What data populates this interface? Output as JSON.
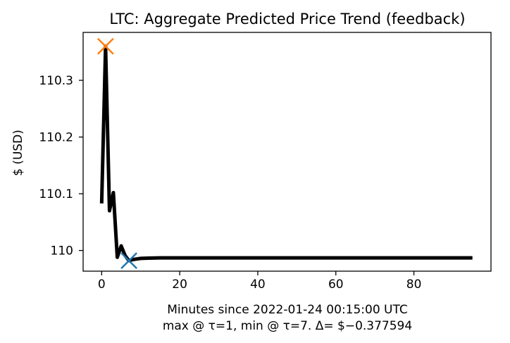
{
  "chart_data": {
    "type": "line",
    "title": "LTC: Aggregate Predicted Price Trend (feedback)",
    "xlabel": "Minutes since 2022-01-24 00:15:00 UTC",
    "xlabel_line2": "max @ τ=1, min @ τ=7. Δ= $−0.377594",
    "ylabel": "$ (USD)",
    "xlim": [
      -4.75,
      99.75
    ],
    "ylim": [
      109.9635,
      110.3845
    ],
    "xticks": [
      0,
      20,
      40,
      60,
      80
    ],
    "yticks": [
      110,
      110.1,
      110.2,
      110.3
    ],
    "ytick_labels": [
      "110",
      "110.1",
      "110.2",
      "110.3"
    ],
    "grid": false,
    "series": [
      {
        "color": "#000000",
        "x": [
          0,
          1,
          2,
          3,
          4,
          5,
          6,
          7,
          8,
          9,
          10,
          12,
          15,
          20,
          30,
          40,
          60,
          80,
          95
        ],
        "y": [
          110.083,
          110.36,
          110.07,
          110.102,
          109.988,
          110.008,
          109.991,
          109.982,
          109.984,
          109.985,
          109.986,
          109.9865,
          109.987,
          109.987,
          109.987,
          109.987,
          109.987,
          109.987,
          109.987
        ]
      }
    ],
    "markers": [
      {
        "label": "max",
        "x": 1,
        "y": 110.36,
        "color": "#ff7f0e",
        "shape": "x"
      },
      {
        "label": "min",
        "x": 7,
        "y": 109.982,
        "color": "#1f77b4",
        "shape": "x"
      }
    ]
  }
}
